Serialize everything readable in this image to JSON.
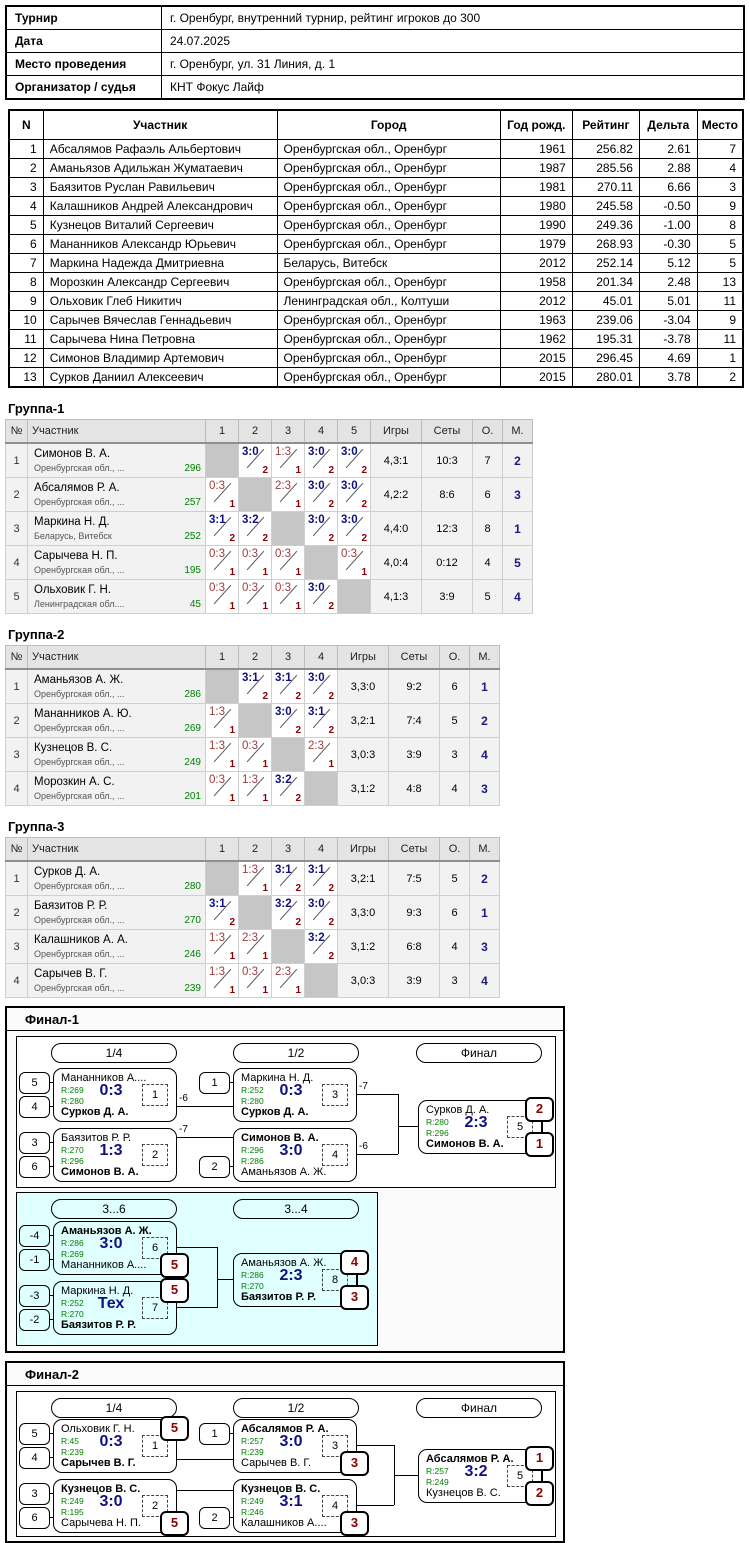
{
  "info": {
    "rows": [
      {
        "label": "Турнир",
        "value": "г. Оренбург, внутренний турнир, рейтинг игроков до 300"
      },
      {
        "label": "Дата",
        "value": "24.07.2025"
      },
      {
        "label": "Место проведения",
        "value": "г. Оренбург, ул. 31 Линия, д. 1"
      },
      {
        "label": "Организатор / судья",
        "value": "КНТ Фокус Лайф"
      }
    ]
  },
  "participants": {
    "headers": [
      "N",
      "Участник",
      "Город",
      "Год рожд.",
      "Рейтинг",
      "Дельта",
      "Место"
    ],
    "rows": [
      [
        "1",
        "Абсалямов Рафаэль Альбертович",
        "Оренбургская обл., Оренбург",
        "1961",
        "256.82",
        "2.61",
        "7"
      ],
      [
        "2",
        "Аманьязов Адильжан Жуматаевич",
        "Оренбургская обл., Оренбург",
        "1987",
        "285.56",
        "2.88",
        "4"
      ],
      [
        "3",
        "Баязитов Руслан Равильевич",
        "Оренбургская обл., Оренбург",
        "1981",
        "270.11",
        "6.66",
        "3"
      ],
      [
        "4",
        "Калашников Андрей Александрович",
        "Оренбургская обл., Оренбург",
        "1980",
        "245.58",
        "-0.50",
        "9"
      ],
      [
        "5",
        "Кузнецов Виталий Сергеевич",
        "Оренбургская обл., Оренбург",
        "1990",
        "249.36",
        "-1.00",
        "8"
      ],
      [
        "6",
        "Мананников Александр Юрьевич",
        "Оренбургская обл., Оренбург",
        "1979",
        "268.93",
        "-0.30",
        "5"
      ],
      [
        "7",
        "Маркина Надежда Дмитриевна",
        "Беларусь, Витебск",
        "2012",
        "252.14",
        "5.12",
        "5"
      ],
      [
        "8",
        "Морозкин Александр Сергеевич",
        "Оренбургская обл., Оренбург",
        "1958",
        "201.34",
        "2.48",
        "13"
      ],
      [
        "9",
        "Ольховик Глеб Никитич",
        "Ленинградская обл., Колтуши",
        "2012",
        "45.01",
        "5.01",
        "11"
      ],
      [
        "10",
        "Сарычев Вячеслав Геннадьевич",
        "Оренбургская обл., Оренбург",
        "1963",
        "239.06",
        "-3.04",
        "9"
      ],
      [
        "11",
        "Сарычева Нина Петровна",
        "Оренбургская обл., Оренбург",
        "1962",
        "195.31",
        "-3.78",
        "11"
      ],
      [
        "12",
        "Симонов Владимир Артемович",
        "Оренбургская обл., Оренбург",
        "2015",
        "296.45",
        "4.69",
        "1"
      ],
      [
        "13",
        "Сурков Даниил Алексеевич",
        "Оренбургская обл., Оренбург",
        "2015",
        "280.01",
        "3.78",
        "2"
      ]
    ]
  },
  "group_headers": {
    "num": "№",
    "participant": "Участник",
    "games": "Игры",
    "sets": "Сеты",
    "points": "О.",
    "place": "М."
  },
  "groups": [
    {
      "title": "Группа-1",
      "match_cols": [
        "1",
        "2",
        "3",
        "4",
        "5"
      ],
      "rows": [
        {
          "num": "1",
          "name": "Симонов В. А.",
          "region": "Оренбургская обл., ...",
          "rating": "296",
          "cells": [
            {
              "self": true
            },
            {
              "score": "3:0",
              "pts": "2",
              "win": true
            },
            {
              "score": "1:3",
              "pts": "1",
              "win": false
            },
            {
              "score": "3:0",
              "pts": "2",
              "win": true
            },
            {
              "score": "3:0",
              "pts": "2",
              "win": true
            }
          ],
          "games": "4,3:1",
          "sets": "10:3",
          "points": "7",
          "place": "2"
        },
        {
          "num": "2",
          "name": "Абсалямов Р. А.",
          "region": "Оренбургская обл., ...",
          "rating": "257",
          "cells": [
            {
              "score": "0:3",
              "pts": "1",
              "win": false
            },
            {
              "self": true
            },
            {
              "score": "2:3",
              "pts": "1",
              "win": false
            },
            {
              "score": "3:0",
              "pts": "2",
              "win": true
            },
            {
              "score": "3:0",
              "pts": "2",
              "win": true
            }
          ],
          "games": "4,2:2",
          "sets": "8:6",
          "points": "6",
          "place": "3"
        },
        {
          "num": "3",
          "name": "Маркина Н. Д.",
          "region": "Беларусь, Витебск",
          "rating": "252",
          "cells": [
            {
              "score": "3:1",
              "pts": "2",
              "win": true
            },
            {
              "score": "3:2",
              "pts": "2",
              "win": true
            },
            {
              "self": true
            },
            {
              "score": "3:0",
              "pts": "2",
              "win": true
            },
            {
              "score": "3:0",
              "pts": "2",
              "win": true
            }
          ],
          "games": "4,4:0",
          "sets": "12:3",
          "points": "8",
          "place": "1"
        },
        {
          "num": "4",
          "name": "Сарычева Н. П.",
          "region": "Оренбургская обл., ...",
          "rating": "195",
          "cells": [
            {
              "score": "0:3",
              "pts": "1",
              "win": false
            },
            {
              "score": "0:3",
              "pts": "1",
              "win": false
            },
            {
              "score": "0:3",
              "pts": "1",
              "win": false
            },
            {
              "self": true
            },
            {
              "score": "0:3",
              "pts": "1",
              "win": false
            }
          ],
          "games": "4,0:4",
          "sets": "0:12",
          "points": "4",
          "place": "5"
        },
        {
          "num": "5",
          "name": "Ольховик Г. Н.",
          "region": "Ленинградская обл....",
          "rating": "45",
          "cells": [
            {
              "score": "0:3",
              "pts": "1",
              "win": false
            },
            {
              "score": "0:3",
              "pts": "1",
              "win": false
            },
            {
              "score": "0:3",
              "pts": "1",
              "win": false
            },
            {
              "score": "3:0",
              "pts": "2",
              "win": true
            },
            {
              "self": true
            }
          ],
          "games": "4,1:3",
          "sets": "3:9",
          "points": "5",
          "place": "4"
        }
      ]
    },
    {
      "title": "Группа-2",
      "match_cols": [
        "1",
        "2",
        "3",
        "4"
      ],
      "rows": [
        {
          "num": "1",
          "name": "Аманьязов А. Ж.",
          "region": "Оренбургская обл., ...",
          "rating": "286",
          "cells": [
            {
              "self": true
            },
            {
              "score": "3:1",
              "pts": "2",
              "win": true
            },
            {
              "score": "3:1",
              "pts": "2",
              "win": true
            },
            {
              "score": "3:0",
              "pts": "2",
              "win": true
            }
          ],
          "games": "3,3:0",
          "sets": "9:2",
          "points": "6",
          "place": "1"
        },
        {
          "num": "2",
          "name": "Мананников А. Ю.",
          "region": "Оренбургская обл., ...",
          "rating": "269",
          "cells": [
            {
              "score": "1:3",
              "pts": "1",
              "win": false
            },
            {
              "self": true
            },
            {
              "score": "3:0",
              "pts": "2",
              "win": true
            },
            {
              "score": "3:1",
              "pts": "2",
              "win": true
            }
          ],
          "games": "3,2:1",
          "sets": "7:4",
          "points": "5",
          "place": "2"
        },
        {
          "num": "3",
          "name": "Кузнецов В. С.",
          "region": "Оренбургская обл., ...",
          "rating": "249",
          "cells": [
            {
              "score": "1:3",
              "pts": "1",
              "win": false
            },
            {
              "score": "0:3",
              "pts": "1",
              "win": false
            },
            {
              "self": true
            },
            {
              "score": "2:3",
              "pts": "1",
              "win": false
            }
          ],
          "games": "3,0:3",
          "sets": "3:9",
          "points": "3",
          "place": "4"
        },
        {
          "num": "4",
          "name": "Морозкин А. С.",
          "region": "Оренбургская обл., ...",
          "rating": "201",
          "cells": [
            {
              "score": "0:3",
              "pts": "1",
              "win": false
            },
            {
              "score": "1:3",
              "pts": "1",
              "win": false
            },
            {
              "score": "3:2",
              "pts": "2",
              "win": true
            },
            {
              "self": true
            }
          ],
          "games": "3,1:2",
          "sets": "4:8",
          "points": "4",
          "place": "3"
        }
      ]
    },
    {
      "title": "Группа-3",
      "match_cols": [
        "1",
        "2",
        "3",
        "4"
      ],
      "rows": [
        {
          "num": "1",
          "name": "Сурков Д. А.",
          "region": "Оренбургская обл., ...",
          "rating": "280",
          "cells": [
            {
              "self": true
            },
            {
              "score": "1:3",
              "pts": "1",
              "win": false
            },
            {
              "score": "3:1",
              "pts": "2",
              "win": true
            },
            {
              "score": "3:1",
              "pts": "2",
              "win": true
            }
          ],
          "games": "3,2:1",
          "sets": "7:5",
          "points": "5",
          "place": "2"
        },
        {
          "num": "2",
          "name": "Баязитов Р. Р.",
          "region": "Оренбургская обл., ...",
          "rating": "270",
          "cells": [
            {
              "score": "3:1",
              "pts": "2",
              "win": true
            },
            {
              "self": true
            },
            {
              "score": "3:2",
              "pts": "2",
              "win": true
            },
            {
              "score": "3:0",
              "pts": "2",
              "win": true
            }
          ],
          "games": "3,3:0",
          "sets": "9:3",
          "points": "6",
          "place": "1"
        },
        {
          "num": "3",
          "name": "Калашников А. А.",
          "region": "Оренбургская обл., ...",
          "rating": "246",
          "cells": [
            {
              "score": "1:3",
              "pts": "1",
              "win": false
            },
            {
              "score": "2:3",
              "pts": "1",
              "win": false
            },
            {
              "self": true
            },
            {
              "score": "3:2",
              "pts": "2",
              "win": true
            }
          ],
          "games": "3,1:2",
          "sets": "6:8",
          "points": "4",
          "place": "3"
        },
        {
          "num": "4",
          "name": "Сарычев В. Г.",
          "region": "Оренбургская обл., ...",
          "rating": "239",
          "cells": [
            {
              "score": "1:3",
              "pts": "1",
              "win": false
            },
            {
              "score": "0:3",
              "pts": "1",
              "win": false
            },
            {
              "score": "2:3",
              "pts": "1",
              "win": false
            },
            {
              "self": true
            }
          ],
          "games": "3,0:3",
          "sets": "3:9",
          "points": "3",
          "place": "4"
        }
      ]
    }
  ],
  "finals": [
    {
      "title": "Финал-1",
      "round_labels": [
        "1/4",
        "1/2",
        "Финал"
      ],
      "consolation_labels": [
        "3...6",
        "3...4"
      ],
      "connector_labels": [
        "-6",
        "-7",
        "-7",
        "-6"
      ],
      "matches": [
        {
          "p1": "Мананников А....",
          "r1": "R:269",
          "score": "0:3",
          "r2": "R:280",
          "p2": "Сурков Д. А.",
          "winner": 2,
          "no": "1",
          "seed1": "5",
          "seed2": "4"
        },
        {
          "p1": "Баязитов Р. Р.",
          "r1": "R:270",
          "score": "1:3",
          "r2": "R:296",
          "p2": "Симонов В. А.",
          "winner": 2,
          "no": "2",
          "seed1": "3",
          "seed2": "6"
        },
        {
          "p1": "Маркина Н. Д.",
          "r1": "R:252",
          "score": "0:3",
          "r2": "R:280",
          "p2": "Сурков Д. А.",
          "winner": 2,
          "no": "3",
          "seed1": "1"
        },
        {
          "p1": "Симонов В. А.",
          "r1": "R:296",
          "score": "3:0",
          "r2": "R:286",
          "p2": "Аманьязов А. Ж.",
          "winner": 1,
          "no": "4",
          "seed2": "2"
        },
        {
          "p1": "Сурков Д. А.",
          "r1": "R:280",
          "score": "2:3",
          "r2": "R:296",
          "p2": "Симонов В. А.",
          "winner": 2,
          "no": "5",
          "place1": "2",
          "place2": "1"
        },
        {
          "p1": "Аманьязов А. Ж.",
          "r1": "R:286",
          "score": "3:0",
          "r2": "R:269",
          "p2": "Мананников А....",
          "winner": 1,
          "no": "6",
          "seed1": "-4",
          "seed2": "-1",
          "place2": "5"
        },
        {
          "p1": "Маркина Н. Д.",
          "r1": "R:252",
          "score": "Тех",
          "r2": "R:270",
          "p2": "Баязитов Р. Р.",
          "winner": 2,
          "no": "7",
          "seed1": "-3",
          "seed2": "-2",
          "place1": "5"
        },
        {
          "p1": "Аманьязов А. Ж.",
          "r1": "R:286",
          "score": "2:3",
          "r2": "R:270",
          "p2": "Баязитов Р. Р.",
          "winner": 2,
          "no": "8",
          "place1": "4",
          "place2": "3"
        }
      ]
    },
    {
      "title": "Финал-2",
      "round_labels": [
        "1/4",
        "1/2",
        "Финал"
      ],
      "consolation_labels": [],
      "connector_labels": [],
      "matches": [
        {
          "p1": "Ольховик Г. Н.",
          "r1": "R:45",
          "score": "0:3",
          "r2": "R:239",
          "p2": "Сарычев В. Г.",
          "winner": 2,
          "no": "1",
          "seed1": "5",
          "seed2": "4",
          "place1": "5"
        },
        {
          "p1": "Кузнецов В. С.",
          "r1": "R:249",
          "score": "3:0",
          "r2": "R:195",
          "p2": "Сарычева Н. П.",
          "winner": 1,
          "no": "2",
          "seed1": "3",
          "seed2": "6",
          "place2": "5"
        },
        {
          "p1": "Абсалямов Р. А.",
          "r1": "R:257",
          "score": "3:0",
          "r2": "R:239",
          "p2": "Сарычев В. Г.",
          "winner": 1,
          "no": "3",
          "seed1": "1",
          "place2": "3"
        },
        {
          "p1": "Кузнецов В. С.",
          "r1": "R:249",
          "score": "3:1",
          "r2": "R:246",
          "p2": "Калашников А....",
          "winner": 1,
          "no": "4",
          "seed2": "2",
          "place2": "3"
        },
        {
          "p1": "Абсалямов Р. А.",
          "r1": "R:257",
          "score": "3:2",
          "r2": "R:249",
          "p2": "Кузнецов В. С.",
          "winner": 1,
          "no": "5",
          "place1": "1",
          "place2": "2"
        }
      ]
    }
  ],
  "colors": {
    "win_score": "#10107e",
    "loss_score": "#9a3b3b",
    "points_red": "#8b0000",
    "rating_green": "#008000",
    "place_navy": "#1a1a80",
    "consolation_bg": "#e0ffff",
    "self_cell": "#c6c6c6"
  }
}
